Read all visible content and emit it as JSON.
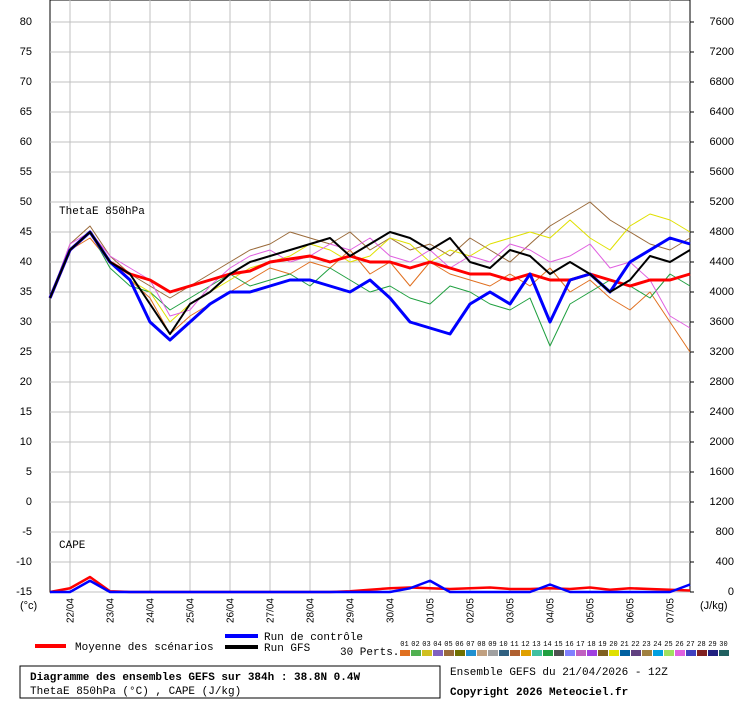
{
  "chart_data": {
    "type": "line",
    "xlim": [
      0,
      384
    ],
    "xticks": [
      {
        "value": 12,
        "label": "22/04"
      },
      {
        "value": 36,
        "label": "23/04"
      },
      {
        "value": 60,
        "label": "24/04"
      },
      {
        "value": 84,
        "label": "25/04"
      },
      {
        "value": 108,
        "label": "26/04"
      },
      {
        "value": 132,
        "label": "27/04"
      },
      {
        "value": 156,
        "label": "28/04"
      },
      {
        "value": 180,
        "label": "29/04"
      },
      {
        "value": 204,
        "label": "30/04"
      },
      {
        "value": 228,
        "label": "01/05"
      },
      {
        "value": 252,
        "label": "02/05"
      },
      {
        "value": 276,
        "label": "03/05"
      },
      {
        "value": 300,
        "label": "04/05"
      },
      {
        "value": 324,
        "label": "05/05"
      },
      {
        "value": 348,
        "label": "06/05"
      },
      {
        "value": 372,
        "label": "07/05"
      }
    ],
    "ylim": [
      -15,
      80
    ],
    "yticks": [
      -15,
      -10,
      -5,
      0,
      5,
      10,
      15,
      20,
      25,
      30,
      35,
      40,
      45,
      50,
      55,
      60,
      65,
      70,
      75,
      80
    ],
    "y2lim": [
      0,
      7600
    ],
    "y2ticks": [
      0,
      400,
      800,
      1200,
      1600,
      2000,
      2400,
      2800,
      3200,
      3600,
      4000,
      4400,
      4800,
      5200,
      5600,
      6000,
      6400,
      6800,
      7200,
      7600
    ],
    "ylabel": "(°c)",
    "y2label": "(J/kg)",
    "grid": true,
    "annotations": [
      "ThetaE 850hPa",
      "CAPE"
    ],
    "x": [
      0,
      12,
      24,
      36,
      48,
      60,
      72,
      84,
      96,
      108,
      120,
      132,
      144,
      156,
      168,
      180,
      192,
      204,
      216,
      228,
      240,
      252,
      264,
      276,
      288,
      300,
      312,
      324,
      336,
      348,
      360,
      372,
      384
    ],
    "series": [
      {
        "name": "Moyenne des scénarios",
        "color": "#ff0000",
        "width": 3,
        "values": [
          34,
          42,
          45,
          40,
          38,
          37,
          35,
          36,
          37,
          38,
          38.5,
          40,
          40.5,
          41,
          40,
          41,
          40,
          40,
          39,
          40,
          39,
          38,
          38,
          37,
          38,
          37,
          37,
          38,
          37,
          36,
          37,
          37,
          38
        ]
      },
      {
        "name": "Run de contrôle",
        "color": "#0000ff",
        "width": 3,
        "values": [
          34,
          42,
          45,
          40,
          37,
          30,
          27,
          30,
          33,
          35,
          35,
          36,
          37,
          37,
          36,
          35,
          37,
          34,
          30,
          29,
          28,
          33,
          35,
          33,
          38,
          30,
          37,
          38,
          35,
          40,
          42,
          44,
          43
        ]
      },
      {
        "name": "Run GFS",
        "color": "#000000",
        "width": 2,
        "values": [
          34,
          42,
          45,
          40,
          38,
          33,
          28,
          33,
          35,
          38,
          40,
          41,
          42,
          43,
          44,
          41,
          43,
          45,
          44,
          42,
          44,
          40,
          39,
          42,
          41,
          38,
          40,
          38,
          35,
          37,
          41,
          40,
          42
        ]
      },
      {
        "color": "#ff0000",
        "width": 2.5,
        "axis": "y2",
        "values": [
          0,
          50,
          200,
          10,
          0,
          0,
          0,
          0,
          0,
          0,
          0,
          0,
          0,
          0,
          0,
          10,
          30,
          50,
          60,
          50,
          40,
          50,
          60,
          40,
          40,
          50,
          40,
          60,
          30,
          50,
          40,
          30,
          20
        ]
      },
      {
        "color": "#0000ff",
        "width": 2.5,
        "axis": "y2",
        "values": [
          0,
          0,
          150,
          0,
          0,
          0,
          0,
          0,
          0,
          0,
          0,
          0,
          0,
          0,
          0,
          0,
          0,
          0,
          50,
          150,
          0,
          0,
          0,
          0,
          0,
          100,
          0,
          0,
          0,
          0,
          0,
          0,
          100
        ]
      }
    ],
    "perturbations_label": "30 Perts.",
    "perturbations": [
      {
        "name": "01",
        "color": "#e07020"
      },
      {
        "name": "02",
        "color": "#50b050"
      },
      {
        "name": "03",
        "color": "#d0c020"
      },
      {
        "name": "04",
        "color": "#8060c0"
      },
      {
        "name": "05",
        "color": "#9a6a3a"
      },
      {
        "name": "06",
        "color": "#707000"
      },
      {
        "name": "07",
        "color": "#2090d0"
      },
      {
        "name": "08",
        "color": "#c0a080"
      },
      {
        "name": "09",
        "color": "#a0a0a0"
      },
      {
        "name": "10",
        "color": "#306080"
      },
      {
        "name": "11",
        "color": "#b06030"
      },
      {
        "name": "12",
        "color": "#e0a000"
      },
      {
        "name": "13",
        "color": "#40c0a0"
      },
      {
        "name": "14",
        "color": "#20a040"
      },
      {
        "name": "15",
        "color": "#505050"
      },
      {
        "name": "16",
        "color": "#8080ff"
      },
      {
        "name": "17",
        "color": "#c060c0"
      },
      {
        "name": "18",
        "color": "#a040e0"
      },
      {
        "name": "19",
        "color": "#806020"
      },
      {
        "name": "20",
        "color": "#e0e000"
      },
      {
        "name": "21",
        "color": "#0060a0"
      },
      {
        "name": "22",
        "color": "#604080"
      },
      {
        "name": "23",
        "color": "#a08040"
      },
      {
        "name": "24",
        "color": "#00a0e0"
      },
      {
        "name": "25",
        "color": "#a0e060"
      },
      {
        "name": "26",
        "color": "#e060e0"
      },
      {
        "name": "27",
        "color": "#4040c0"
      },
      {
        "name": "28",
        "color": "#802020"
      },
      {
        "name": "29",
        "color": "#202080"
      },
      {
        "name": "30",
        "color": "#206060"
      }
    ],
    "perturbation_series": [
      {
        "name": "01",
        "values": [
          34,
          42,
          44,
          40,
          37,
          34,
          28,
          31,
          33,
          35,
          37,
          39,
          38,
          40,
          39,
          42,
          38,
          40,
          36,
          40,
          38,
          37,
          36,
          38,
          36,
          39,
          35,
          37,
          34,
          32,
          35,
          30,
          25
        ]
      },
      {
        "name": "05",
        "values": [
          34,
          43,
          46,
          41,
          38,
          36,
          34,
          36,
          38,
          40,
          42,
          43,
          45,
          44,
          43,
          45,
          42,
          44,
          42,
          43,
          41,
          44,
          42,
          40,
          43,
          46,
          48,
          50,
          47,
          45,
          43,
          42,
          44
        ]
      },
      {
        "name": "14",
        "values": [
          34,
          42,
          45,
          39,
          36,
          35,
          32,
          34,
          36,
          38,
          36,
          37,
          38,
          36,
          39,
          37,
          35,
          36,
          34,
          33,
          36,
          35,
          33,
          32,
          34,
          26,
          33,
          35,
          37,
          36,
          34,
          38,
          36
        ]
      },
      {
        "name": "20",
        "values": [
          34,
          42,
          45,
          40,
          37,
          35,
          30,
          33,
          35,
          37,
          39,
          40,
          41,
          43,
          42,
          40,
          41,
          44,
          43,
          40,
          42,
          41,
          43,
          44,
          45,
          44,
          47,
          44,
          42,
          46,
          48,
          47,
          45
        ]
      },
      {
        "name": "26",
        "values": [
          34,
          43,
          45,
          41,
          39,
          37,
          31,
          32,
          36,
          39,
          41,
          42,
          40,
          41,
          43,
          42,
          44,
          41,
          40,
          42,
          39,
          41,
          40,
          43,
          42,
          40,
          41,
          43,
          39,
          40,
          37,
          31,
          29
        ]
      }
    ],
    "footer": {
      "title": "Diagramme des ensembles GEFS sur 384h : 38.8N 0.4W",
      "subtitle": "ThetaE 850hPa (°C) , CAPE (J/kg)",
      "run": "Ensemble GEFS du 21/04/2026 - 12Z",
      "copyright": "Copyright 2026 Meteociel.fr"
    }
  }
}
